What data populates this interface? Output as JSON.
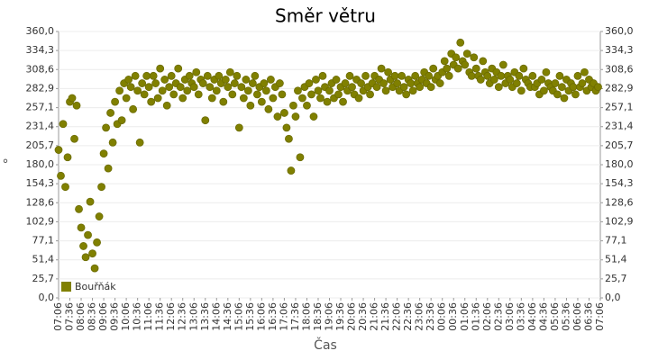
{
  "chart_data": {
    "type": "scatter",
    "title": "Směr větru",
    "x_label": "Čas",
    "y_label": "°",
    "xlim": [
      0,
      1440
    ],
    "xticks": [
      {
        "value": 0,
        "label": "07:06"
      },
      {
        "value": 30,
        "label": "07:36"
      },
      {
        "value": 60,
        "label": "08:06"
      },
      {
        "value": 90,
        "label": "08:36"
      },
      {
        "value": 120,
        "label": "09:06"
      },
      {
        "value": 150,
        "label": "09:36"
      },
      {
        "value": 180,
        "label": "10:06"
      },
      {
        "value": 210,
        "label": "10:36"
      },
      {
        "value": 240,
        "label": "11:06"
      },
      {
        "value": 270,
        "label": "11:36"
      },
      {
        "value": 300,
        "label": "12:06"
      },
      {
        "value": 330,
        "label": "12:36"
      },
      {
        "value": 360,
        "label": "13:06"
      },
      {
        "value": 390,
        "label": "13:36"
      },
      {
        "value": 420,
        "label": "14:06"
      },
      {
        "value": 450,
        "label": "14:36"
      },
      {
        "value": 480,
        "label": "15:06"
      },
      {
        "value": 510,
        "label": "15:36"
      },
      {
        "value": 540,
        "label": "16:06"
      },
      {
        "value": 570,
        "label": "16:36"
      },
      {
        "value": 600,
        "label": "17:06"
      },
      {
        "value": 630,
        "label": "17:36"
      },
      {
        "value": 660,
        "label": "18:06"
      },
      {
        "value": 690,
        "label": "18:36"
      },
      {
        "value": 720,
        "label": "19:06"
      },
      {
        "value": 750,
        "label": "19:36"
      },
      {
        "value": 780,
        "label": "20:06"
      },
      {
        "value": 810,
        "label": "20:36"
      },
      {
        "value": 840,
        "label": "21:06"
      },
      {
        "value": 870,
        "label": "21:36"
      },
      {
        "value": 900,
        "label": "22:06"
      },
      {
        "value": 930,
        "label": "22:36"
      },
      {
        "value": 960,
        "label": "23:06"
      },
      {
        "value": 990,
        "label": "23:36"
      },
      {
        "value": 1020,
        "label": "00:06"
      },
      {
        "value": 1050,
        "label": "00:36"
      },
      {
        "value": 1080,
        "label": "01:06"
      },
      {
        "value": 1110,
        "label": "01:36"
      },
      {
        "value": 1140,
        "label": "02:06"
      },
      {
        "value": 1170,
        "label": "02:36"
      },
      {
        "value": 1200,
        "label": "03:06"
      },
      {
        "value": 1230,
        "label": "03:36"
      },
      {
        "value": 1260,
        "label": "04:06"
      },
      {
        "value": 1290,
        "label": "04:36"
      },
      {
        "value": 1320,
        "label": "05:06"
      },
      {
        "value": 1350,
        "label": "05:36"
      },
      {
        "value": 1380,
        "label": "06:06"
      },
      {
        "value": 1410,
        "label": "06:36"
      },
      {
        "value": 1440,
        "label": "07:06"
      }
    ],
    "ylim": [
      0,
      360
    ],
    "yticks": [
      {
        "value": 0,
        "label": "0,0"
      },
      {
        "value": 25.7,
        "label": "25,7"
      },
      {
        "value": 51.4,
        "label": "51,4"
      },
      {
        "value": 77.1,
        "label": "77,1"
      },
      {
        "value": 102.9,
        "label": "102,9"
      },
      {
        "value": 128.6,
        "label": "128,6"
      },
      {
        "value": 154.3,
        "label": "154,3"
      },
      {
        "value": 180,
        "label": "180,0"
      },
      {
        "value": 205.7,
        "label": "205,7"
      },
      {
        "value": 231.4,
        "label": "231,4"
      },
      {
        "value": 257.1,
        "label": "257,1"
      },
      {
        "value": 282.9,
        "label": "282,9"
      },
      {
        "value": 308.6,
        "label": "308,6"
      },
      {
        "value": 334.3,
        "label": "334,3"
      },
      {
        "value": 360,
        "label": "360,0"
      }
    ],
    "grid": true,
    "legend": "bottom-left",
    "series": [
      {
        "name": "Bouřňák",
        "color": "#808000",
        "x": [
          0,
          6,
          12,
          18,
          24,
          30,
          36,
          42,
          48,
          54,
          60,
          66,
          72,
          78,
          84,
          90,
          96,
          102,
          108,
          114,
          120,
          126,
          132,
          138,
          144,
          150,
          156,
          162,
          168,
          174,
          180,
          186,
          192,
          198,
          204,
          210,
          216,
          222,
          228,
          234,
          240,
          246,
          252,
          258,
          264,
          270,
          276,
          282,
          288,
          294,
          300,
          306,
          312,
          318,
          324,
          330,
          336,
          342,
          348,
          354,
          360,
          366,
          372,
          378,
          384,
          390,
          396,
          402,
          408,
          414,
          420,
          426,
          432,
          438,
          444,
          450,
          456,
          462,
          468,
          474,
          480,
          486,
          492,
          498,
          504,
          510,
          516,
          522,
          528,
          534,
          540,
          546,
          552,
          558,
          564,
          570,
          576,
          582,
          588,
          594,
          600,
          606,
          612,
          618,
          624,
          630,
          636,
          642,
          648,
          654,
          660,
          666,
          672,
          678,
          684,
          690,
          696,
          702,
          708,
          714,
          720,
          726,
          732,
          738,
          744,
          750,
          756,
          762,
          768,
          774,
          780,
          786,
          792,
          798,
          804,
          810,
          816,
          822,
          828,
          834,
          840,
          846,
          852,
          858,
          864,
          870,
          876,
          882,
          888,
          894,
          900,
          906,
          912,
          918,
          924,
          930,
          936,
          942,
          948,
          954,
          960,
          966,
          972,
          978,
          984,
          990,
          996,
          1002,
          1008,
          1014,
          1020,
          1026,
          1032,
          1038,
          1044,
          1050,
          1056,
          1062,
          1068,
          1074,
          1080,
          1086,
          1092,
          1098,
          1104,
          1110,
          1116,
          1122,
          1128,
          1134,
          1140,
          1146,
          1152,
          1158,
          1164,
          1170,
          1176,
          1182,
          1188,
          1194,
          1200,
          1206,
          1212,
          1218,
          1224,
          1230,
          1236,
          1242,
          1248,
          1254,
          1260,
          1266,
          1272,
          1278,
          1284,
          1290,
          1296,
          1302,
          1308,
          1314,
          1320,
          1326,
          1332,
          1338,
          1344,
          1350,
          1356,
          1362,
          1368,
          1374,
          1380,
          1386,
          1392,
          1398,
          1404,
          1410,
          1416,
          1422,
          1428,
          1434
        ],
        "values": [
          200,
          165,
          235,
          150,
          190,
          265,
          270,
          215,
          260,
          120,
          95,
          70,
          55,
          85,
          130,
          60,
          40,
          75,
          110,
          150,
          195,
          230,
          175,
          250,
          210,
          265,
          235,
          280,
          240,
          290,
          270,
          295,
          285,
          255,
          300,
          280,
          210,
          290,
          275,
          300,
          285,
          265,
          300,
          290,
          270,
          310,
          280,
          295,
          260,
          285,
          300,
          275,
          290,
          310,
          285,
          270,
          295,
          280,
          300,
          290,
          285,
          305,
          275,
          295,
          290,
          240,
          300,
          285,
          270,
          295,
          280,
          300,
          290,
          265,
          295,
          285,
          305,
          275,
          290,
          300,
          230,
          285,
          270,
          295,
          280,
          260,
          290,
          300,
          275,
          285,
          265,
          290,
          280,
          255,
          295,
          270,
          285,
          245,
          290,
          275,
          250,
          230,
          215,
          172,
          260,
          245,
          280,
          190,
          270,
          285,
          260,
          290,
          275,
          245,
          295,
          280,
          270,
          300,
          285,
          265,
          280,
          290,
          270,
          295,
          275,
          285,
          265,
          290,
          280,
          300,
          285,
          275,
          295,
          270,
          290,
          280,
          300,
          285,
          275,
          290,
          300,
          285,
          295,
          310,
          290,
          280,
          305,
          295,
          285,
          300,
          290,
          280,
          300,
          285,
          275,
          295,
          290,
          280,
          300,
          290,
          285,
          295,
          305,
          290,
          300,
          285,
          310,
          295,
          300,
          290,
          305,
          320,
          310,
          300,
          330,
          315,
          325,
          310,
          345,
          320,
          315,
          330,
          305,
          300,
          325,
          310,
          300,
          295,
          320,
          305,
          300,
          290,
          310,
          295,
          305,
          285,
          300,
          315,
          290,
          300,
          295,
          285,
          305,
          290,
          300,
          280,
          310,
          295,
          290,
          285,
          300,
          285,
          290,
          275,
          295,
          280,
          305,
          290,
          285,
          280,
          290,
          275,
          300,
          285,
          270,
          295,
          280,
          290,
          285,
          275,
          300,
          285,
          290,
          305,
          280,
          295,
          285,
          290,
          280,
          285
        ]
      }
    ]
  }
}
